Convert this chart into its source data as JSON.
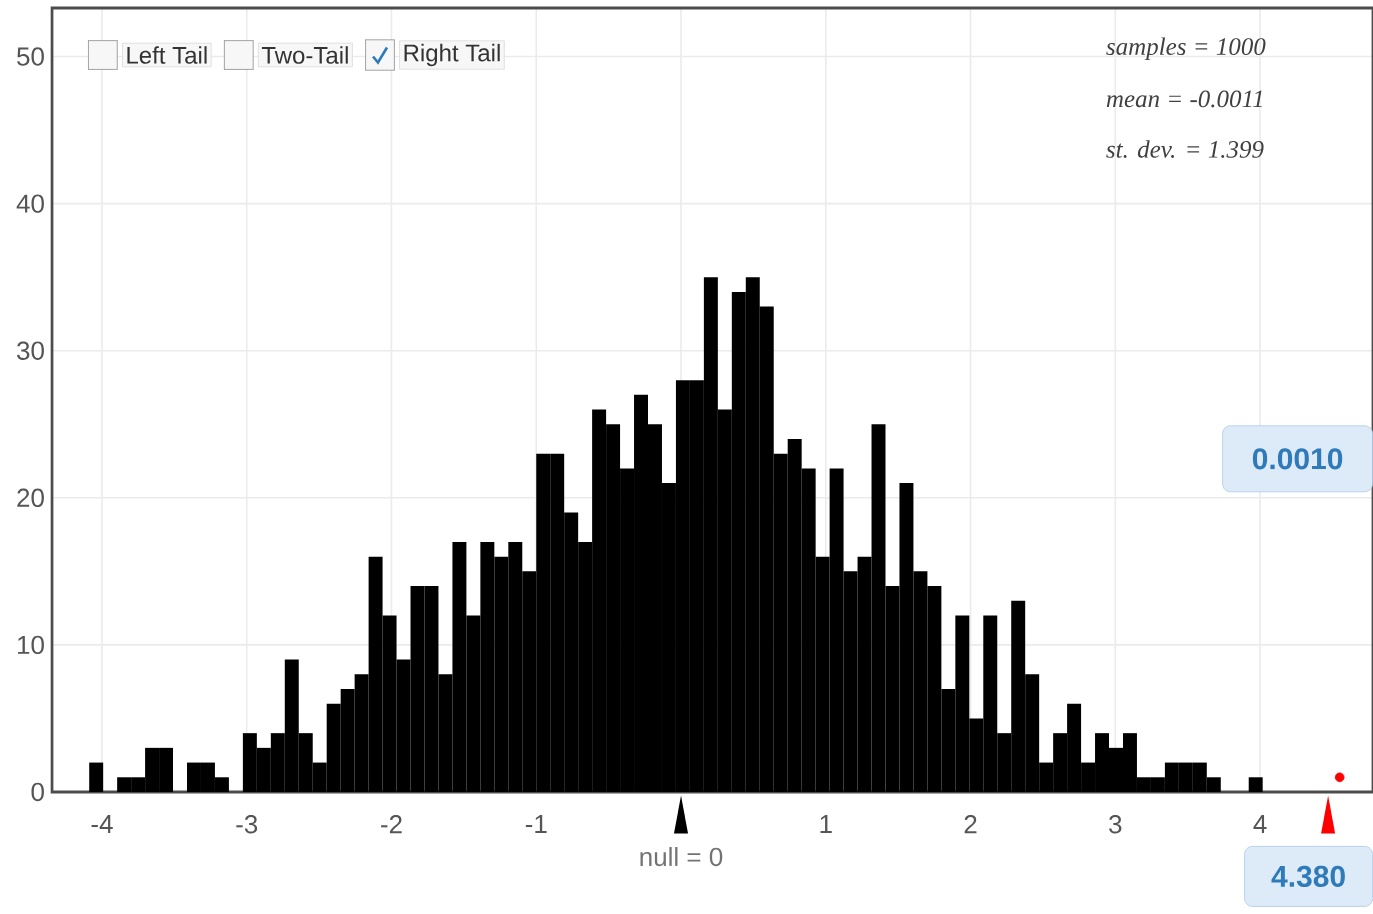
{
  "chart_data": {
    "type": "histogram",
    "series": [
      {
        "color": "#000000",
        "bins": [
          -4.088,
          -3.9915,
          -3.895,
          -3.7985,
          -3.702,
          -3.6055,
          -3.509,
          -3.4125,
          -3.316,
          -3.2195,
          -3.123,
          -3.0265,
          -2.93,
          -2.8335,
          -2.737,
          -2.6405,
          -2.544,
          -2.4475,
          -2.351,
          -2.2545,
          -2.158,
          -2.0615,
          -1.965,
          -1.8685,
          -1.772,
          -1.6755,
          -1.579,
          -1.4825,
          -1.386,
          -1.2895,
          -1.193,
          -1.0965,
          -1.0,
          -0.9035,
          -0.807,
          -0.7105,
          -0.614,
          -0.5175,
          -0.421,
          -0.3245,
          -0.228,
          -0.1315,
          -0.035,
          0.0615,
          0.158,
          0.2545,
          0.351,
          0.4475,
          0.544,
          0.6405,
          0.737,
          0.8335,
          0.93,
          1.0265,
          1.123,
          1.2195,
          1.316,
          1.4125,
          1.509,
          1.6055,
          1.702,
          1.7985,
          1.895,
          1.9915,
          2.088,
          2.1845,
          2.281,
          2.3775,
          2.474,
          2.5705,
          2.667,
          2.7635,
          2.86,
          2.9565,
          3.053,
          3.1495,
          3.246,
          3.3425,
          3.439,
          3.5355,
          3.632,
          3.7285,
          3.825,
          3.9215,
          4.018
        ],
        "values": [
          2,
          0,
          1,
          1,
          3,
          3,
          0,
          2,
          2,
          1,
          0,
          4,
          3,
          4,
          9,
          4,
          2,
          6,
          7,
          8,
          16,
          12,
          9,
          14,
          14,
          8,
          17,
          12,
          17,
          16,
          17,
          15,
          23,
          23,
          19,
          17,
          26,
          25,
          22,
          27,
          25,
          21,
          28,
          28,
          35,
          26,
          34,
          35,
          33,
          23,
          24,
          22,
          16,
          22,
          15,
          16,
          25,
          14,
          21,
          15,
          14,
          7,
          12,
          5,
          12,
          4,
          13,
          8,
          2,
          4,
          6,
          2,
          4,
          3,
          4,
          1,
          1,
          2,
          2,
          2,
          1,
          0,
          0,
          1
        ]
      },
      {
        "type": "scatter",
        "color": "#ff0000",
        "x": [
          4.55
        ],
        "values": [
          1
        ]
      }
    ],
    "xlim": [
      -4.345,
      4.78
    ],
    "ylim": [
      0,
      53.3
    ],
    "xticks": [
      -4,
      -3,
      -2,
      -1,
      {
        "value": 0,
        "label": null
      },
      1,
      2,
      3,
      4
    ],
    "yticks": [
      0,
      10,
      20,
      30,
      40,
      50
    ],
    "grid": true,
    "annotations": [
      "Left Tail",
      "Two-Tail",
      "Right Tail",
      "samples = 1000",
      "mean = -0.0011",
      "st. dev. = 1.399",
      "0.0010",
      {
        "text": "null = 0",
        "x": 0,
        "y": 0
      },
      "4.380"
    ]
  }
}
